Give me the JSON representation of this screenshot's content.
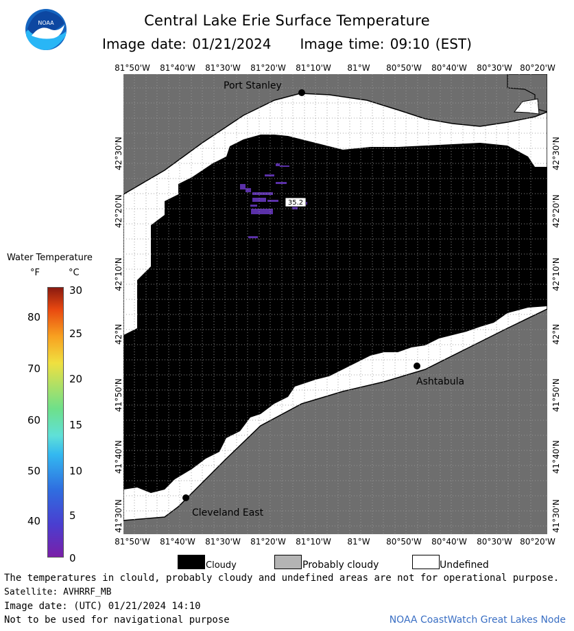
{
  "header": {
    "title": "Central Lake Erie Surface Temperature",
    "image_date": "Image date: 01/21/2024",
    "image_time": "Image time: 09:10 (EST)",
    "logo_text": "NOAA"
  },
  "map": {
    "longitude_labels": [
      "81°50'W",
      "81°40'W",
      "81°30'W",
      "81°20'W",
      "81°10'W",
      "81°W",
      "80°50'W",
      "80°40'W",
      "80°30'W",
      "80°20'W"
    ],
    "latitude_labels": [
      "42°30'N",
      "42°20'N",
      "42°10'N",
      "42°N",
      "41°50'N",
      "41°40'N",
      "41°30'N"
    ],
    "cities": [
      {
        "name": "Port Stanley"
      },
      {
        "name": "Ashtabula"
      },
      {
        "name": "Cleveland East"
      }
    ],
    "temperature_readout": "35.2",
    "colors": {
      "land": "#6e6e6e",
      "cloudy": "#000000",
      "undefined": "#ffffff",
      "water_cold": "#5a30a8"
    }
  },
  "legend": {
    "title": "Water Temperature",
    "unit_f": "°F",
    "unit_c": "°C",
    "f_ticks": [
      "80",
      "70",
      "60",
      "50",
      "40"
    ],
    "c_ticks": [
      "30",
      "25",
      "20",
      "15",
      "10",
      "5",
      "0"
    ],
    "categories": [
      {
        "label": "Cloudy",
        "color": "#000000"
      },
      {
        "label": "Probably cloudy",
        "color": "#b4b4b4"
      },
      {
        "label": "Undefined",
        "color": "#ffffff"
      }
    ]
  },
  "footer": {
    "disclaimer": "The temperatures in clould, probably cloudy and undefined areas are not for operational purpose.",
    "satellite": "Satellite: AVHRRF_MB",
    "utc_date": "Image date: (UTC) 01/21/2024  14:10",
    "nav_warning": "Not to be used for navigational purpose",
    "credit": "NOAA CoastWatch Great Lakes Node"
  }
}
